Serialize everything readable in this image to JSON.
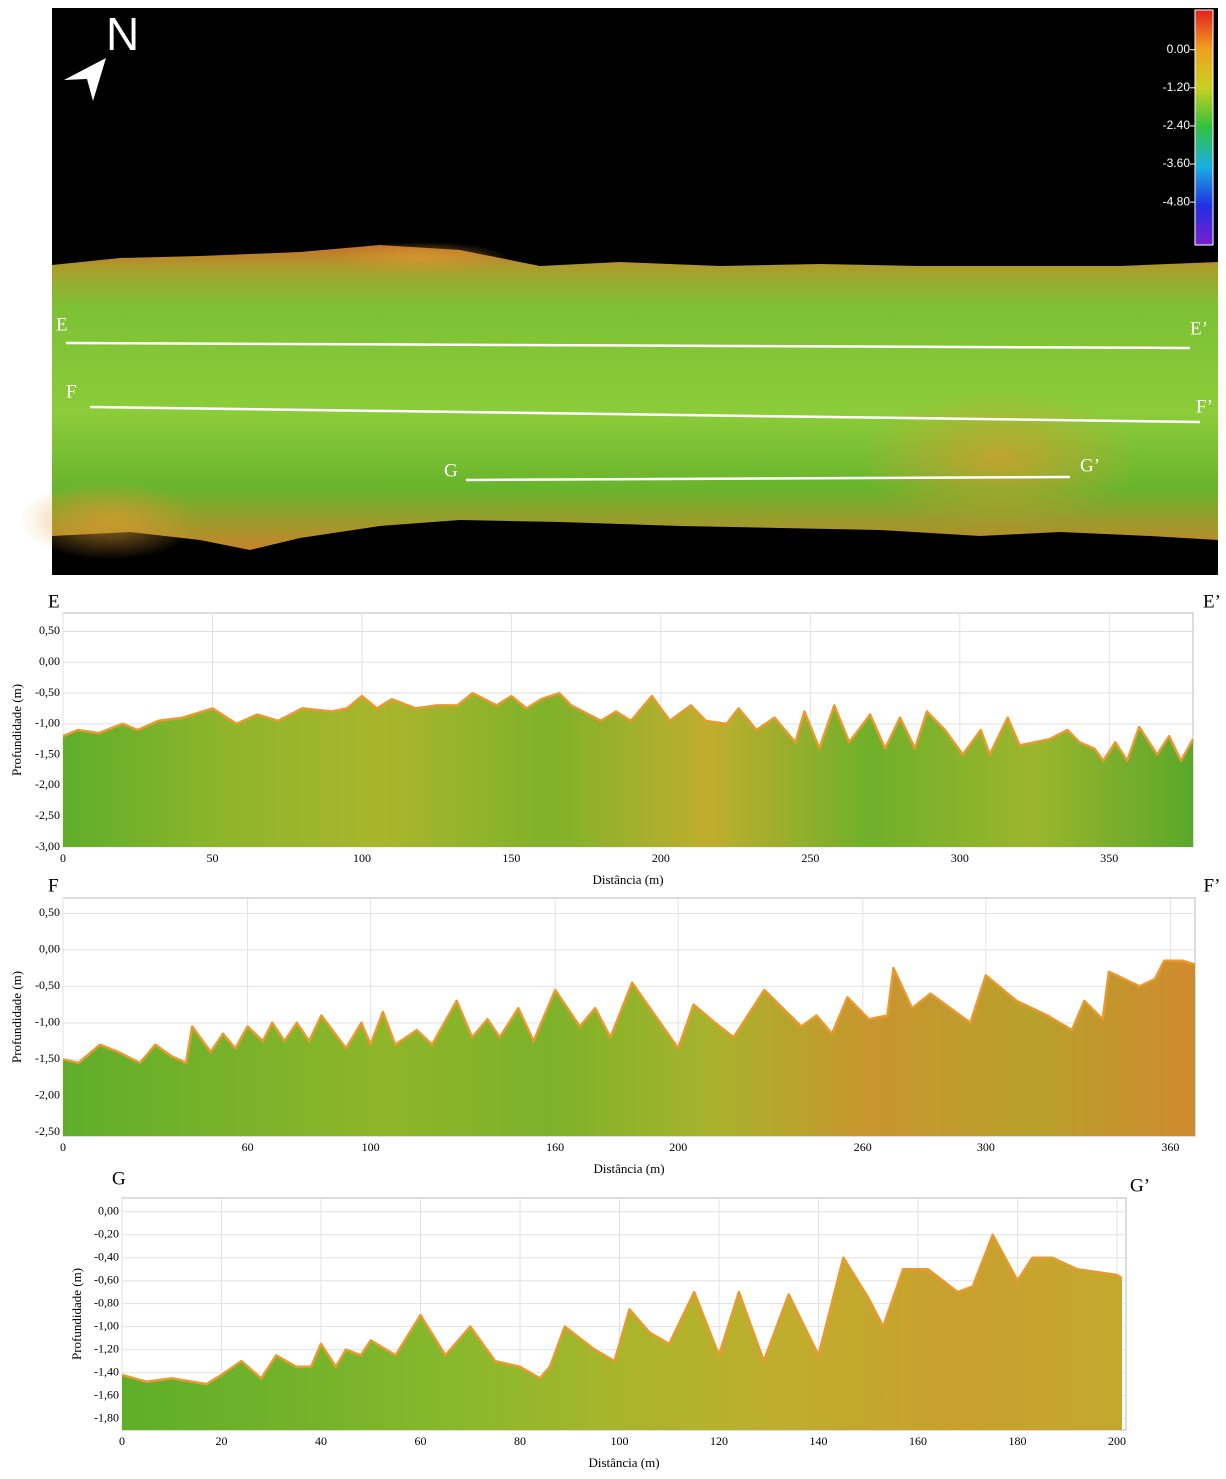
{
  "map": {
    "north": "N",
    "lines": [
      {
        "start": "E",
        "end": "E’"
      },
      {
        "start": "F",
        "end": "F’"
      },
      {
        "start": "G",
        "end": "G’"
      }
    ],
    "colorbar": {
      "lim": [
        -6.15,
        1.25
      ],
      "colors": [
        "#7a1fd0",
        "#2030e0",
        "#1ab0e0",
        "#30c040",
        "#c8d020",
        "#f0a020",
        "#e02020"
      ],
      "ticks": [
        {
          "value": 0,
          "label": "0.00"
        },
        {
          "value": -1.2,
          "label": "-1.20"
        },
        {
          "value": -2.4,
          "label": "-2.40"
        },
        {
          "value": -3.6,
          "label": "-3.60"
        },
        {
          "value": -4.8,
          "label": "-4.80"
        }
      ]
    }
  },
  "chart_data": [
    {
      "type": "area",
      "title": "E",
      "end_label": "E’",
      "x_label": "Distância (m)",
      "y_label": "Profundidade (m)",
      "color": "#e89a30",
      "fill": [
        "#5fae2a",
        "#8fb52a",
        "#a9b52c",
        "#7fb22a",
        "#c0ad2e",
        "#6fb02a",
        "#9cb52c",
        "#5aa82a"
      ],
      "grid": true,
      "xlim": [
        0,
        378
      ],
      "ylim": [
        -3.0,
        0.8
      ],
      "xticks": [
        0,
        50,
        100,
        150,
        200,
        250,
        300,
        350
      ],
      "yticks": [
        {
          "value": 0.5,
          "label": "0,50"
        },
        {
          "value": 0,
          "label": "0,00"
        },
        {
          "value": -0.5,
          "label": "-0,50"
        },
        {
          "value": -1,
          "label": "-1,00"
        },
        {
          "value": -1.5,
          "label": "-1,50"
        },
        {
          "value": -2,
          "label": "-2,00"
        },
        {
          "value": -2.5,
          "label": "-2,50"
        },
        {
          "value": -3,
          "label": "-3,00"
        }
      ],
      "x": [
        0,
        5,
        12,
        20,
        25,
        32,
        40,
        50,
        58,
        65,
        72,
        80,
        90,
        95,
        100,
        105,
        110,
        118,
        125,
        132,
        137,
        145,
        150,
        155,
        160,
        166,
        170,
        180,
        185,
        190,
        197,
        203,
        210,
        215,
        222,
        226,
        232,
        238,
        245,
        248,
        253,
        258,
        263,
        270,
        275,
        280,
        285,
        289,
        295,
        301,
        307,
        310,
        316,
        320,
        330,
        336,
        340,
        345,
        348,
        352,
        356,
        360,
        366,
        370,
        374,
        378
      ],
      "values": [
        -1.2,
        -1.1,
        -1.15,
        -1.0,
        -1.1,
        -0.95,
        -0.9,
        -0.75,
        -1.0,
        -0.85,
        -0.95,
        -0.75,
        -0.8,
        -0.75,
        -0.55,
        -0.75,
        -0.6,
        -0.75,
        -0.7,
        -0.7,
        -0.5,
        -0.7,
        -0.55,
        -0.75,
        -0.6,
        -0.5,
        -0.7,
        -0.95,
        -0.8,
        -0.95,
        -0.55,
        -0.95,
        -0.7,
        -0.95,
        -1.0,
        -0.75,
        -1.1,
        -0.9,
        -1.3,
        -0.8,
        -1.4,
        -0.7,
        -1.3,
        -0.85,
        -1.4,
        -0.9,
        -1.4,
        -0.8,
        -1.1,
        -1.5,
        -1.1,
        -1.5,
        -0.9,
        -1.35,
        -1.25,
        -1.1,
        -1.3,
        -1.4,
        -1.6,
        -1.3,
        -1.6,
        -1.05,
        -1.5,
        -1.2,
        -1.6,
        -1.25
      ]
    },
    {
      "type": "area",
      "title": "F",
      "end_label": "F’",
      "x_label": "Distância (m)",
      "y_label": "Profundidade (m)",
      "color": "#e89a30",
      "fill": [
        "#5fae2a",
        "#78b22a",
        "#8fb52a",
        "#7cb22a",
        "#a8b22c",
        "#c8952e",
        "#b8a02c",
        "#d08a2e"
      ],
      "grid": true,
      "xlim": [
        0,
        368
      ],
      "ylim": [
        -2.55,
        0.71
      ],
      "xticks": [
        0,
        60,
        100,
        160,
        200,
        260,
        300,
        360
      ],
      "yticks": [
        {
          "value": 0.5,
          "label": "0,50"
        },
        {
          "value": 0,
          "label": "0,00"
        },
        {
          "value": -0.5,
          "label": "-0,50"
        },
        {
          "value": -1,
          "label": "-1,00"
        },
        {
          "value": -1.5,
          "label": "-1,50"
        },
        {
          "value": -2,
          "label": "-2,00"
        },
        {
          "value": -2.5,
          "label": "-2,50"
        }
      ],
      "x": [
        0,
        5,
        12,
        18,
        25,
        30,
        35,
        40,
        42,
        48,
        52,
        56,
        60,
        65,
        68,
        72,
        76,
        80,
        84,
        92,
        97,
        100,
        104,
        108,
        115,
        120,
        128,
        133,
        138,
        142,
        148,
        153,
        160,
        168,
        173,
        178,
        185,
        200,
        205,
        212,
        218,
        228,
        240,
        245,
        250,
        255,
        262,
        268,
        270,
        276,
        282,
        295,
        300,
        310,
        320,
        328,
        332,
        338,
        340,
        350,
        355,
        358,
        364,
        368
      ],
      "values": [
        -1.5,
        -1.55,
        -1.3,
        -1.4,
        -1.55,
        -1.3,
        -1.45,
        -1.55,
        -1.05,
        -1.4,
        -1.15,
        -1.35,
        -1.05,
        -1.25,
        -1.0,
        -1.25,
        -1.0,
        -1.25,
        -0.9,
        -1.35,
        -1.0,
        -1.3,
        -0.85,
        -1.3,
        -1.1,
        -1.3,
        -0.7,
        -1.2,
        -0.95,
        -1.2,
        -0.8,
        -1.25,
        -0.55,
        -1.05,
        -0.8,
        -1.2,
        -0.45,
        -1.35,
        -0.75,
        -1.0,
        -1.2,
        -0.55,
        -1.05,
        -0.9,
        -1.15,
        -0.65,
        -0.95,
        -0.9,
        -0.25,
        -0.8,
        -0.6,
        -1.0,
        -0.35,
        -0.7,
        -0.9,
        -1.1,
        -0.7,
        -0.95,
        -0.3,
        -0.5,
        -0.4,
        -0.15,
        -0.15,
        -0.2
      ]
    },
    {
      "type": "area",
      "title": "G",
      "end_label": "G’",
      "x_label": "Distância (m)",
      "y_label": "Profundidade (m)",
      "color": "#e89a30",
      "fill": [
        "#5fae2a",
        "#72b22a",
        "#88b82c",
        "#a9b52c",
        "#c0ad2e",
        "#c8a02e",
        "#c4a82e"
      ],
      "grid": true,
      "xlim": [
        0,
        201.8
      ],
      "ylim": [
        -1.9,
        0.12
      ],
      "xticks": [
        0,
        20,
        40,
        60,
        80,
        100,
        120,
        140,
        160,
        180,
        200
      ],
      "yticks": [
        {
          "value": 0,
          "label": "0,00"
        },
        {
          "value": -0.2,
          "label": "-0,20"
        },
        {
          "value": -0.4,
          "label": "-0,40"
        },
        {
          "value": -0.6,
          "label": "-0,60"
        },
        {
          "value": -0.8,
          "label": "-0,80"
        },
        {
          "value": -1,
          "label": "-1,00"
        },
        {
          "value": -1.2,
          "label": "-1,20"
        },
        {
          "value": -1.4,
          "label": "-1,40"
        },
        {
          "value": -1.6,
          "label": "-1,60"
        },
        {
          "value": -1.8,
          "label": "-1,80"
        }
      ],
      "x": [
        0,
        5,
        10,
        17,
        20,
        24,
        28,
        31,
        35,
        38,
        40,
        43,
        45,
        48,
        50,
        55,
        60,
        65,
        70,
        75,
        80,
        84,
        86,
        89,
        95,
        99,
        102,
        106,
        110,
        115,
        120,
        124,
        129,
        134,
        140,
        145,
        150,
        153,
        157,
        162,
        168,
        171,
        175,
        180,
        183,
        187,
        192,
        200,
        201
      ],
      "values": [
        -1.42,
        -1.48,
        -1.45,
        -1.5,
        -1.42,
        -1.3,
        -1.45,
        -1.25,
        -1.35,
        -1.35,
        -1.15,
        -1.35,
        -1.2,
        -1.25,
        -1.12,
        -1.25,
        -0.9,
        -1.25,
        -1.0,
        -1.3,
        -1.35,
        -1.45,
        -1.35,
        -1.0,
        -1.2,
        -1.3,
        -0.85,
        -1.05,
        -1.15,
        -0.7,
        -1.25,
        -0.7,
        -1.3,
        -0.72,
        -1.25,
        -0.4,
        -0.75,
        -1.0,
        -0.5,
        -0.5,
        -0.7,
        -0.65,
        -0.2,
        -0.6,
        -0.4,
        -0.4,
        -0.5,
        -0.55,
        -0.58
      ]
    }
  ]
}
